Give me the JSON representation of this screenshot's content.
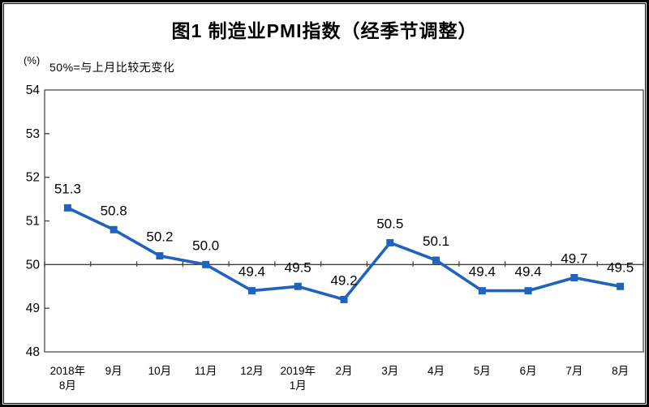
{
  "chart_data": {
    "type": "line",
    "title": "图1 制造业PMI指数（经季节调整）",
    "ylabel": "(%)",
    "annotation": "50%=与上月比较无变化",
    "xlabel": "",
    "ylim": [
      48,
      54
    ],
    "yticks": [
      54,
      53,
      52,
      51,
      50,
      49,
      48
    ],
    "reference_line_y": 50,
    "gridlines": false,
    "legend": false,
    "categories": [
      [
        "2018年",
        "8月"
      ],
      [
        "9月"
      ],
      [
        "10月"
      ],
      [
        "11月"
      ],
      [
        "12月"
      ],
      [
        "2019年",
        "1月"
      ],
      [
        "2月"
      ],
      [
        "3月"
      ],
      [
        "4月"
      ],
      [
        "5月"
      ],
      [
        "6月"
      ],
      [
        "7月"
      ],
      [
        "8月"
      ]
    ],
    "values": [
      51.3,
      50.8,
      50.2,
      50.0,
      49.4,
      49.5,
      49.2,
      50.5,
      50.1,
      49.4,
      49.4,
      49.7,
      49.5
    ],
    "data_labels": [
      "51.3",
      "50.8",
      "50.2",
      "50.0",
      "49.4",
      "49.5",
      "49.2",
      "50.5",
      "50.1",
      "49.4",
      "49.4",
      "49.7",
      "49.5"
    ],
    "colors": {
      "series": "#1F63BE",
      "plot_border": "#595959",
      "reference_line": "#404040",
      "tick": "#404040",
      "text": "#000000",
      "frame": "#000000"
    }
  }
}
